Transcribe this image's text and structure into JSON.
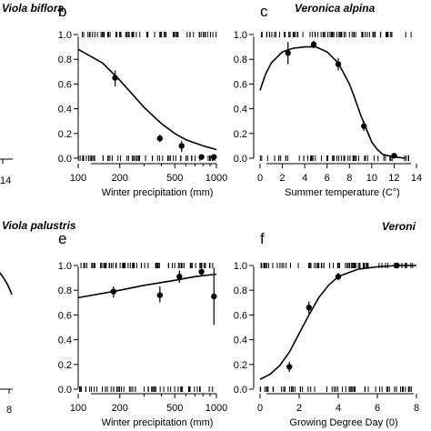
{
  "chart_data": [
    {
      "id": "b",
      "type": "scatter",
      "panel_label": "b",
      "title": "Viola biflora",
      "xlabel": "Winter precipitation (mm)",
      "ylabel": "",
      "x_scale": "log",
      "xlim": [
        100,
        1000
      ],
      "ylim": [
        0,
        1.0
      ],
      "xticks": [
        100,
        200,
        500,
        1000
      ],
      "xtick_labels": [
        "100",
        "200",
        "500",
        "1000"
      ],
      "yticks": [
        0,
        0.2,
        0.4,
        0.6,
        0.8,
        1.0
      ],
      "ytick_labels": [
        "0.0",
        "0.2",
        "0.4",
        "0.6",
        "0.8",
        "1.0"
      ],
      "grid": false,
      "points": [
        {
          "x": 185,
          "y": 0.65,
          "lo": 0.58,
          "hi": 0.71
        },
        {
          "x": 390,
          "y": 0.16,
          "lo": 0.13,
          "hi": 0.19
        },
        {
          "x": 560,
          "y": 0.1,
          "lo": 0.05,
          "hi": 0.14
        },
        {
          "x": 780,
          "y": 0.01,
          "lo": 0.0,
          "hi": 0.02
        },
        {
          "x": 960,
          "y": 0.01,
          "lo": 0.0,
          "hi": 0.02
        }
      ],
      "fitted_curve": [
        {
          "x": 100,
          "y": 0.88
        },
        {
          "x": 150,
          "y": 0.77
        },
        {
          "x": 200,
          "y": 0.63
        },
        {
          "x": 250,
          "y": 0.51
        },
        {
          "x": 300,
          "y": 0.41
        },
        {
          "x": 400,
          "y": 0.28
        },
        {
          "x": 500,
          "y": 0.2
        },
        {
          "x": 600,
          "y": 0.15
        },
        {
          "x": 800,
          "y": 0.1
        },
        {
          "x": 1000,
          "y": 0.07
        }
      ]
    },
    {
      "id": "c",
      "type": "scatter",
      "panel_label": "c",
      "title": "Veronica alpina",
      "xlabel": "Summer temperature (C°)",
      "ylabel": "",
      "x_scale": "linear",
      "xlim": [
        0,
        14
      ],
      "ylim": [
        0,
        1.0
      ],
      "xticks": [
        0,
        2,
        4,
        6,
        8,
        10,
        12,
        14
      ],
      "xtick_labels": [
        "0",
        "2",
        "4",
        "6",
        "8",
        "10",
        "12",
        "14"
      ],
      "yticks": [
        0,
        0.2,
        0.4,
        0.6,
        0.8,
        1.0
      ],
      "ytick_labels": [
        "0.0",
        "0.2",
        "0.4",
        "0.6",
        "0.8",
        "1.0"
      ],
      "grid": false,
      "points": [
        {
          "x": 2.5,
          "y": 0.85,
          "lo": 0.76,
          "hi": 0.94
        },
        {
          "x": 4.8,
          "y": 0.92,
          "lo": 0.89,
          "hi": 0.95
        },
        {
          "x": 7.0,
          "y": 0.76,
          "lo": 0.71,
          "hi": 0.81
        },
        {
          "x": 9.3,
          "y": 0.26,
          "lo": 0.22,
          "hi": 0.3
        },
        {
          "x": 12.0,
          "y": 0.02,
          "lo": 0.0,
          "hi": 0.03
        }
      ],
      "fitted_curve": [
        {
          "x": 0,
          "y": 0.55
        },
        {
          "x": 0.5,
          "y": 0.68
        },
        {
          "x": 1,
          "y": 0.77
        },
        {
          "x": 2,
          "y": 0.86
        },
        {
          "x": 3,
          "y": 0.89
        },
        {
          "x": 4,
          "y": 0.9
        },
        {
          "x": 5,
          "y": 0.9
        },
        {
          "x": 6,
          "y": 0.86
        },
        {
          "x": 7,
          "y": 0.77
        },
        {
          "x": 8,
          "y": 0.6
        },
        {
          "x": 8.5,
          "y": 0.48
        },
        {
          "x": 9,
          "y": 0.35
        },
        {
          "x": 9.5,
          "y": 0.24
        },
        {
          "x": 10,
          "y": 0.13
        },
        {
          "x": 10.5,
          "y": 0.07
        },
        {
          "x": 11,
          "y": 0.03
        },
        {
          "x": 12,
          "y": 0.01
        },
        {
          "x": 13,
          "y": 0.0
        }
      ]
    },
    {
      "id": "e",
      "type": "scatter",
      "panel_label": "e",
      "title": "Viola palustris",
      "xlabel": "Winter precipitation (mm)",
      "ylabel": "",
      "x_scale": "log",
      "xlim": [
        100,
        1000
      ],
      "ylim": [
        0,
        1.0
      ],
      "xticks": [
        100,
        200,
        500,
        1000
      ],
      "xtick_labels": [
        "100",
        "200",
        "500",
        "1000"
      ],
      "yticks": [
        0,
        0.2,
        0.4,
        0.6,
        0.8,
        1.0
      ],
      "ytick_labels": [
        "0.0",
        "0.2",
        "0.4",
        "0.6",
        "0.8",
        "1.0"
      ],
      "grid": false,
      "points": [
        {
          "x": 180,
          "y": 0.79,
          "lo": 0.74,
          "hi": 0.83
        },
        {
          "x": 390,
          "y": 0.76,
          "lo": 0.7,
          "hi": 0.83
        },
        {
          "x": 540,
          "y": 0.91,
          "lo": 0.86,
          "hi": 0.96
        },
        {
          "x": 780,
          "y": 0.95,
          "lo": 0.92,
          "hi": 0.98
        },
        {
          "x": 960,
          "y": 0.75,
          "lo": 0.52,
          "hi": 0.98
        }
      ],
      "fitted_curve": [
        {
          "x": 100,
          "y": 0.74
        },
        {
          "x": 200,
          "y": 0.8
        },
        {
          "x": 300,
          "y": 0.84
        },
        {
          "x": 500,
          "y": 0.88
        },
        {
          "x": 700,
          "y": 0.91
        },
        {
          "x": 1000,
          "y": 0.93
        }
      ]
    },
    {
      "id": "f",
      "type": "scatter",
      "panel_label": "f",
      "title": "Veroni",
      "xlabel": "Growing Degree Day (0)",
      "ylabel": "",
      "x_scale": "linear",
      "xlim": [
        0,
        8
      ],
      "ylim": [
        0,
        1.0
      ],
      "xticks": [
        0,
        2,
        4,
        6,
        8
      ],
      "xtick_labels": [
        "0",
        "2",
        "4",
        "6",
        "8"
      ],
      "yticks": [
        0,
        0.2,
        0.4,
        0.6,
        0.8,
        1.0
      ],
      "ytick_labels": [
        "0.0",
        "0.2",
        "0.4",
        "0.6",
        "0.8",
        "1.0"
      ],
      "grid": false,
      "points": [
        {
          "x": 1.5,
          "y": 0.18,
          "lo": 0.14,
          "hi": 0.22
        },
        {
          "x": 2.5,
          "y": 0.66,
          "lo": 0.61,
          "hi": 0.71
        },
        {
          "x": 4.0,
          "y": 0.91,
          "lo": 0.88,
          "hi": 0.94
        },
        {
          "x": 7.0,
          "y": 1.0,
          "lo": 0.99,
          "hi": 1.0
        }
      ],
      "fitted_curve": [
        {
          "x": 0,
          "y": 0.08
        },
        {
          "x": 0.5,
          "y": 0.12
        },
        {
          "x": 1,
          "y": 0.19
        },
        {
          "x": 1.5,
          "y": 0.3
        },
        {
          "x": 2,
          "y": 0.45
        },
        {
          "x": 2.5,
          "y": 0.6
        },
        {
          "x": 3,
          "y": 0.74
        },
        {
          "x": 3.5,
          "y": 0.84
        },
        {
          "x": 4,
          "y": 0.91
        },
        {
          "x": 5,
          "y": 0.97
        },
        {
          "x": 6,
          "y": 0.99
        },
        {
          "x": 7,
          "y": 1.0
        },
        {
          "x": 8,
          "y": 1.0
        }
      ]
    }
  ],
  "partial_panels": {
    "a_title": "Viola biflora",
    "a_xtick": "14",
    "d_title": "Viola palustris",
    "d_xtick": "8"
  }
}
